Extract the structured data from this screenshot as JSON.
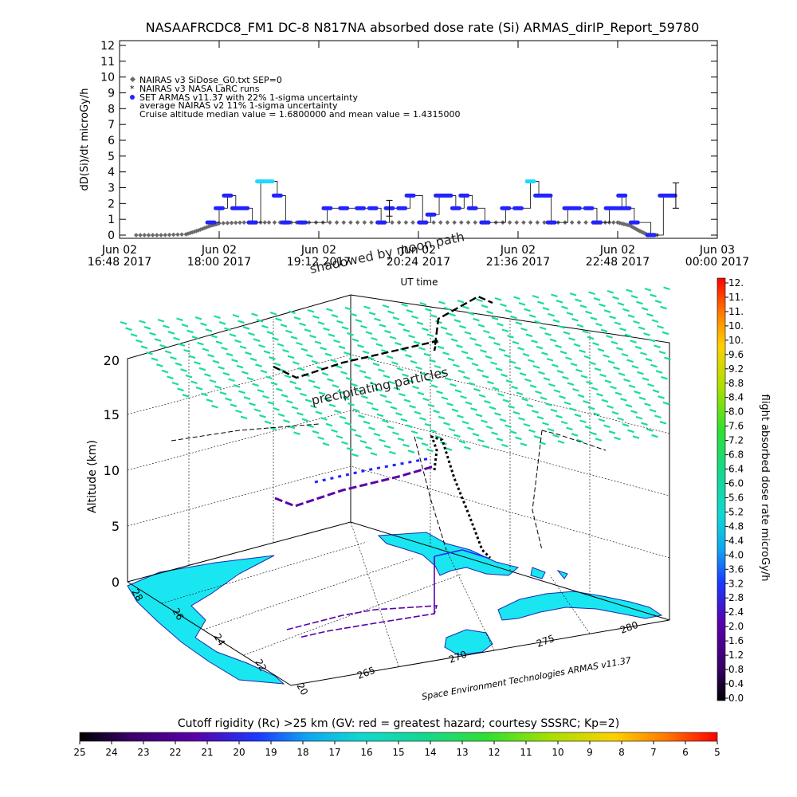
{
  "title": "NASAAFRCDC8_FM1 DC-8   N817NA absorbed dose rate (Si) ARMAS_dirIP_Report_59780",
  "chart_data": [
    {
      "type": "scatter",
      "title": "NASAAFRCDC8_FM1 DC-8   N817NA absorbed dose rate (Si) ARMAS_dirIP_Report_59780",
      "ylabel": "dD(Si)/dt microGy/h",
      "xlabel": "UT time",
      "ylim": [
        0,
        12
      ],
      "yticks": [
        "0",
        "1",
        "2",
        "3",
        "4",
        "5",
        "6",
        "7",
        "8",
        "9",
        "10",
        "11",
        "12"
      ],
      "xrange_hours": [
        16.8,
        24.0
      ],
      "xticks": [
        {
          "hour": 16.8,
          "top": "Jun 02",
          "bottom": "16:48 2017"
        },
        {
          "hour": 18.0,
          "top": "Jun 02",
          "bottom": "18:00 2017"
        },
        {
          "hour": 19.2,
          "top": "Jun 02",
          "bottom": "19:12 2017"
        },
        {
          "hour": 20.4,
          "top": "Jun 02",
          "bottom": "20:24 2017"
        },
        {
          "hour": 21.6,
          "top": "Jun 02",
          "bottom": "21:36 2017"
        },
        {
          "hour": 22.8,
          "top": "Jun 02",
          "bottom": "22:48 2017"
        },
        {
          "hour": 24.0,
          "top": "Jun 03",
          "bottom": "00:00 2017"
        }
      ],
      "legend": [
        "NAIRAS v3 SiDose_G0.txt SEP=0",
        "NAIRAS v3 NASA LaRC runs",
        "SET ARMAS v11.37 with 22% 1-sigma uncertainty",
        "average NAIRAS v2 11% 1-sigma uncertainty",
        "Cruise altitude median value = 1.6800000 and mean value = 1.4315000"
      ],
      "legend_placement": "top-left",
      "annotation": "shadowed by moon path",
      "series": [
        {
          "name": "NAIRAS v3 SiDose_G0.txt SEP=0",
          "shape": "gray-diamond",
          "points": [
            [
              17.0,
              0.0
            ],
            [
              17.3,
              0.0
            ],
            [
              17.6,
              0.05
            ],
            [
              17.75,
              0.3
            ],
            [
              17.9,
              0.6
            ],
            [
              18.0,
              0.75
            ],
            [
              18.3,
              0.8
            ],
            [
              18.6,
              0.8
            ],
            [
              19.0,
              0.8
            ],
            [
              19.5,
              0.8
            ],
            [
              20.0,
              0.8
            ],
            [
              20.5,
              0.8
            ],
            [
              21.0,
              0.8
            ],
            [
              21.5,
              0.8
            ],
            [
              22.0,
              0.8
            ],
            [
              22.5,
              0.8
            ],
            [
              22.8,
              0.8
            ],
            [
              22.95,
              0.6
            ],
            [
              23.05,
              0.3
            ],
            [
              23.15,
              0.05
            ],
            [
              23.3,
              0.0
            ]
          ]
        },
        {
          "name": "SET ARMAS v11.37 with 22% 1-sigma uncertainty",
          "shape": "blue-dot",
          "points": [
            [
              17.9,
              0.8
            ],
            [
              18.0,
              1.7
            ],
            [
              18.1,
              2.5
            ],
            [
              18.2,
              1.7
            ],
            [
              18.3,
              1.7
            ],
            [
              18.4,
              0.8
            ],
            [
              18.5,
              3.4
            ],
            [
              18.6,
              3.4
            ],
            [
              18.7,
              2.5
            ],
            [
              18.8,
              0.8
            ],
            [
              19.0,
              0.8
            ],
            [
              19.3,
              1.7
            ],
            [
              19.5,
              1.7
            ],
            [
              19.7,
              1.7
            ],
            [
              19.85,
              1.7
            ],
            [
              19.95,
              0.8
            ],
            [
              20.05,
              1.7
            ],
            [
              20.2,
              1.7
            ],
            [
              20.3,
              2.5
            ],
            [
              20.45,
              0.8
            ],
            [
              20.55,
              1.3
            ],
            [
              20.65,
              2.5
            ],
            [
              20.75,
              2.5
            ],
            [
              20.85,
              1.7
            ],
            [
              20.95,
              2.5
            ],
            [
              21.05,
              1.7
            ],
            [
              21.2,
              0.8
            ],
            [
              21.45,
              1.7
            ],
            [
              21.6,
              1.7
            ],
            [
              21.75,
              3.4
            ],
            [
              21.85,
              2.5
            ],
            [
              21.95,
              2.5
            ],
            [
              22.0,
              0.8
            ],
            [
              22.2,
              1.7
            ],
            [
              22.3,
              1.7
            ],
            [
              22.45,
              1.7
            ],
            [
              22.55,
              0.8
            ],
            [
              22.7,
              1.7
            ],
            [
              22.8,
              1.7
            ],
            [
              22.85,
              2.5
            ],
            [
              22.9,
              1.7
            ],
            [
              23.0,
              0.8
            ],
            [
              23.2,
              0.0
            ],
            [
              23.35,
              2.5
            ],
            [
              23.45,
              2.5
            ]
          ]
        }
      ]
    },
    {
      "type": "scatter",
      "subtype": "3d-trajectory",
      "zlabel": "Altitude (km)",
      "zticks": [
        "0",
        "5",
        "10",
        "15",
        "20"
      ],
      "lat_ticks": [
        "20",
        "22",
        "24",
        "26",
        "28"
      ],
      "lon_ticks": [
        "265",
        "270",
        "275",
        "280"
      ],
      "annotation": "precipitating particles",
      "credit": "Space Environment Technologies ARMAS v11.37",
      "colorbar": {
        "label": "flight absorbed dose rate microGy/h",
        "ticks": [
          "0.0",
          "0.4",
          "0.8",
          "1.2",
          "1.6",
          "2.0",
          "2.4",
          "2.8",
          "3.2",
          "3.6",
          "4.0",
          "4.4",
          "4.8",
          "5.2",
          "5.6",
          "6.0",
          "6.4",
          "6.8",
          "7.2",
          "7.6",
          "8.0",
          "8.4",
          "8.8",
          "9.2",
          "9.6",
          "10.",
          "10.",
          "11.",
          "11.",
          "12."
        ]
      }
    }
  ],
  "cutoff_bar": {
    "label": "Cutoff rigidity (Rc) >25 km (GV: red = greatest hazard; courtesy SSSRC; Kp=2)",
    "ticks": [
      "25",
      "24",
      "23",
      "22",
      "21",
      "20",
      "19",
      "18",
      "17",
      "16",
      "15",
      "14",
      "13",
      "12",
      "11",
      "10",
      "9",
      "8",
      "7",
      "6",
      "5"
    ]
  },
  "colors": {
    "armas_points": "#2323ff",
    "armas_high": "#1ed8ff",
    "nairas": "#6a6a6a",
    "flight_track": "#000000",
    "precip_arrows": "#18dc9a",
    "land": "#19e6f0",
    "coast": "#1a2ab0"
  }
}
